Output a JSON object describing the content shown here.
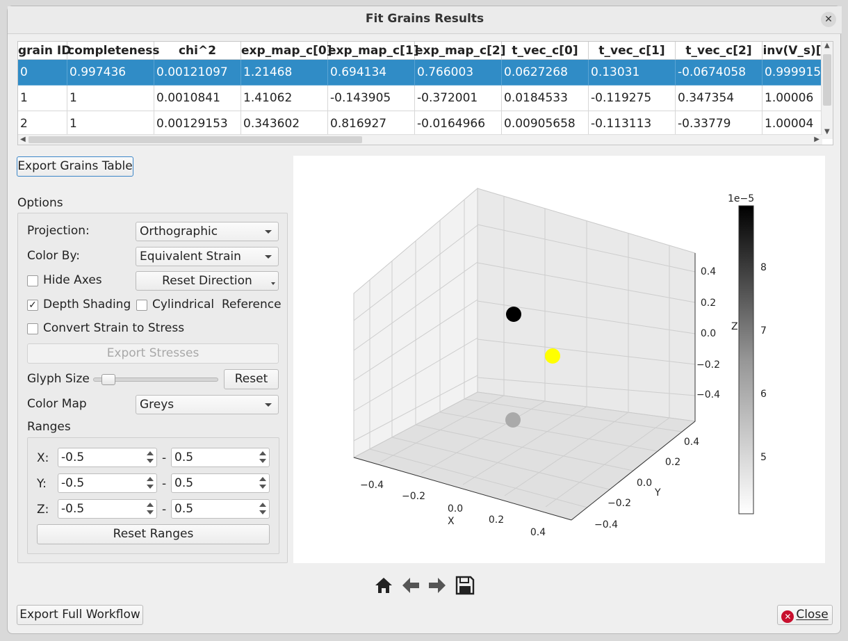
{
  "window": {
    "title": "Fit Grains Results",
    "close_glyph": "✕"
  },
  "table": {
    "columns": [
      "grain ID",
      "completeness",
      "chi^2",
      "exp_map_c[0]",
      "exp_map_c[1]",
      "exp_map_c[2]",
      "t_vec_c[0]",
      "t_vec_c[1]",
      "t_vec_c[2]",
      "inv(V_s)["
    ],
    "rows": [
      [
        "0",
        "0.997436",
        "0.00121097",
        "1.21468",
        "0.694134",
        "0.766003",
        "0.0627268",
        "0.13031",
        "-0.0674058",
        "0.999915"
      ],
      [
        "1",
        "1",
        "0.0010841",
        "1.41062",
        "-0.143905",
        "-0.372001",
        "0.0184533",
        "-0.119275",
        "0.347354",
        "1.00006"
      ],
      [
        "2",
        "1",
        "0.00129153",
        "0.343602",
        "0.816927",
        "-0.0164966",
        "0.00905658",
        "-0.113113",
        "-0.33779",
        "1.00004"
      ]
    ],
    "selected_row": 0
  },
  "export_grains_label": "Export Grains Table",
  "options": {
    "title": "Options",
    "projection_label": "Projection:",
    "projection_value": "Orthographic",
    "color_by_label": "Color By:",
    "color_by_value": "Equivalent Strain",
    "hide_axes_label": "Hide Axes",
    "hide_axes_checked": false,
    "reset_direction_label": "Reset Direction",
    "depth_shading_label": "Depth Shading",
    "depth_shading_checked": true,
    "cylindrical_label": "Cylindrical  Reference",
    "cylindrical_checked": false,
    "convert_label": "Convert Strain to Stress",
    "convert_checked": false,
    "export_stresses_label": "Export Stresses",
    "glyph_size_label": "Glyph Size",
    "glyph_reset_label": "Reset",
    "color_map_label": "Color Map",
    "color_map_value": "Greys",
    "ranges_title": "Ranges",
    "dash": "-",
    "x_label": "X:",
    "x_min": "-0.5",
    "x_max": "0.5",
    "y_label": "Y:",
    "y_min": "-0.5",
    "y_max": "0.5",
    "z_label": "Z:",
    "z_min": "-0.5",
    "z_max": "0.5",
    "reset_ranges_label": "Reset Ranges",
    "check_mark": "✓"
  },
  "plot": {
    "x_axis_label": "X",
    "y_axis_label": "Y",
    "z_axis_label": "Z",
    "x_ticks": [
      "−0.4",
      "−0.2",
      "0.0",
      "0.2",
      "0.4"
    ],
    "y_ticks": [
      "−0.4",
      "−0.2",
      "0.0",
      "0.2",
      "0.4"
    ],
    "z_ticks": [
      "−0.4",
      "−0.2",
      "0.0",
      "0.2",
      "0.4"
    ],
    "colorbar_exponent": "1e−5",
    "colorbar_ticks": [
      "5",
      "6",
      "7",
      "8"
    ],
    "colorbar_colormap": "Greys",
    "points_colors": [
      "#000000",
      "#ffff00",
      "#aaaaaa"
    ]
  },
  "toolbar_icons": [
    "home-icon",
    "back-arrow-icon",
    "forward-arrow-icon",
    "save-icon"
  ],
  "export_workflow_label": "Export Full Workflow",
  "close_label": "Close",
  "close_icon_glyph": "✕"
}
